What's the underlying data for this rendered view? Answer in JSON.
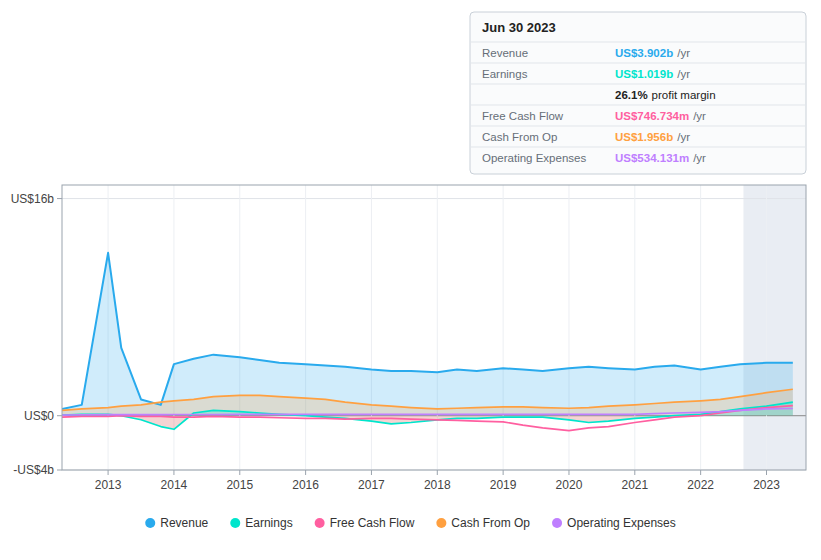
{
  "chart_data": {
    "type": "line",
    "x": [
      2012.3,
      2012.6,
      2013.0,
      2013.2,
      2013.5,
      2013.8,
      2014.0,
      2014.3,
      2014.6,
      2015.0,
      2015.3,
      2015.6,
      2016.0,
      2016.3,
      2016.6,
      2017.0,
      2017.3,
      2017.6,
      2018.0,
      2018.3,
      2018.6,
      2019.0,
      2019.3,
      2019.6,
      2020.0,
      2020.3,
      2020.6,
      2021.0,
      2021.3,
      2021.6,
      2022.0,
      2022.3,
      2022.6,
      2023.0,
      2023.4
    ],
    "series": [
      {
        "name": "Revenue",
        "type": "area",
        "color": "#29aaed",
        "values": [
          0.5,
          0.8,
          12.0,
          5.0,
          1.2,
          0.8,
          3.8,
          4.2,
          4.5,
          4.3,
          4.1,
          3.9,
          3.8,
          3.7,
          3.6,
          3.4,
          3.3,
          3.3,
          3.2,
          3.4,
          3.3,
          3.5,
          3.4,
          3.3,
          3.5,
          3.6,
          3.5,
          3.4,
          3.6,
          3.7,
          3.4,
          3.6,
          3.8,
          3.9,
          3.9
        ]
      },
      {
        "name": "Earnings",
        "type": "area",
        "color": "#00e5cc",
        "values": [
          0.05,
          0.1,
          0.1,
          0.0,
          -0.3,
          -0.8,
          -1.0,
          0.2,
          0.4,
          0.3,
          0.2,
          0.1,
          0.0,
          -0.1,
          -0.2,
          -0.4,
          -0.6,
          -0.5,
          -0.3,
          -0.2,
          -0.2,
          -0.1,
          -0.1,
          -0.1,
          -0.3,
          -0.5,
          -0.4,
          -0.2,
          -0.1,
          0.0,
          0.1,
          0.3,
          0.5,
          0.7,
          1.0
        ]
      },
      {
        "name": "Free Cash Flow",
        "type": "line",
        "color": "#ff5fa0",
        "values": [
          -0.1,
          -0.05,
          -0.05,
          0.0,
          -0.05,
          -0.05,
          -0.1,
          -0.1,
          -0.05,
          -0.1,
          -0.1,
          -0.15,
          -0.2,
          -0.2,
          -0.25,
          -0.2,
          -0.2,
          -0.25,
          -0.3,
          -0.35,
          -0.4,
          -0.45,
          -0.7,
          -0.9,
          -1.1,
          -0.9,
          -0.8,
          -0.5,
          -0.3,
          -0.1,
          0.0,
          0.2,
          0.4,
          0.6,
          0.75
        ]
      },
      {
        "name": "Cash From Op",
        "type": "area",
        "color": "#ffa040",
        "values": [
          0.4,
          0.5,
          0.6,
          0.7,
          0.8,
          1.0,
          1.1,
          1.2,
          1.4,
          1.5,
          1.5,
          1.4,
          1.3,
          1.2,
          1.0,
          0.8,
          0.7,
          0.6,
          0.5,
          0.55,
          0.6,
          0.65,
          0.65,
          0.6,
          0.55,
          0.6,
          0.7,
          0.8,
          0.9,
          1.0,
          1.1,
          1.2,
          1.4,
          1.7,
          1.95
        ]
      },
      {
        "name": "Operating Expenses",
        "type": "line",
        "color": "#bf7fff",
        "values": [
          0.05,
          0.07,
          0.08,
          0.08,
          0.08,
          0.08,
          0.09,
          0.09,
          0.09,
          0.1,
          0.1,
          0.1,
          0.1,
          0.1,
          0.1,
          0.1,
          0.1,
          0.1,
          0.1,
          0.1,
          0.1,
          0.1,
          0.1,
          0.1,
          0.1,
          0.1,
          0.1,
          0.1,
          0.15,
          0.2,
          0.25,
          0.3,
          0.4,
          0.5,
          0.53
        ]
      }
    ],
    "xlim": [
      2012.3,
      2023.6
    ],
    "xticks": [
      2013,
      2014,
      2015,
      2016,
      2017,
      2018,
      2019,
      2020,
      2021,
      2022,
      2023
    ],
    "ylim": [
      -4,
      17
    ],
    "yticks": [
      {
        "value": -4,
        "label": "-US$4b"
      },
      {
        "value": 0,
        "label": "US$0"
      },
      {
        "value": 16,
        "label": "US$16b"
      }
    ],
    "shade_start": 2022.65,
    "grid": true,
    "legend": "bottom",
    "annotations": {
      "title": "Jun 30 2023",
      "rows": [
        {
          "label": "Revenue",
          "value": "US$3.902b",
          "suffix": "/yr",
          "color": "#29aaed"
        },
        {
          "label": "Earnings",
          "value": "US$1.019b",
          "suffix": "/yr",
          "color": "#00e5cc"
        },
        {
          "value": "26.1%",
          "suffix": "profit margin"
        },
        {
          "label": "Free Cash Flow",
          "value": "US$746.734m",
          "suffix": "/yr",
          "color": "#ff5fa0"
        },
        {
          "label": "Cash From Op",
          "value": "US$1.956b",
          "suffix": "/yr",
          "color": "#ffa040"
        },
        {
          "label": "Operating Expenses",
          "value": "US$534.131m",
          "suffix": "/yr",
          "color": "#bf7fff"
        }
      ]
    }
  }
}
